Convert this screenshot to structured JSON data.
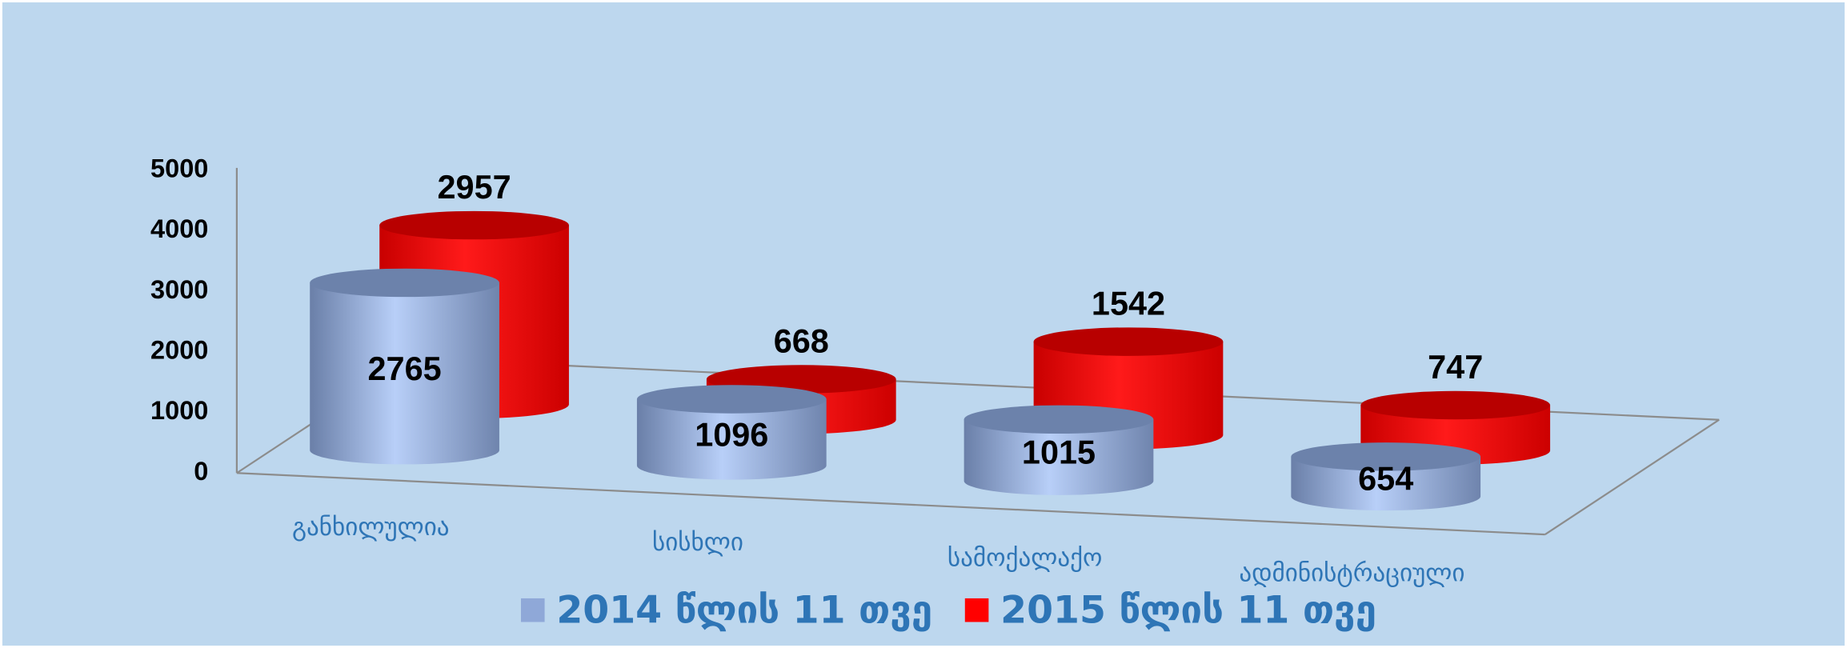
{
  "chart_data": {
    "type": "bar3d",
    "categories": [
      "განხილულია",
      "სისხლი",
      "სამოქალაქო",
      "ადმინისტრაციული"
    ],
    "series": [
      {
        "name": "2014 წლის 11 თვე",
        "color": "#8fa8d8",
        "values": [
          2765,
          1096,
          1015,
          654
        ]
      },
      {
        "name": "2015 წლის 11 თვე",
        "color": "#ff0000",
        "values": [
          2957,
          668,
          1542,
          747
        ]
      }
    ],
    "ylim": [
      0,
      5000
    ],
    "yticks": [
      0,
      1000,
      2000,
      3000,
      4000,
      5000
    ]
  }
}
